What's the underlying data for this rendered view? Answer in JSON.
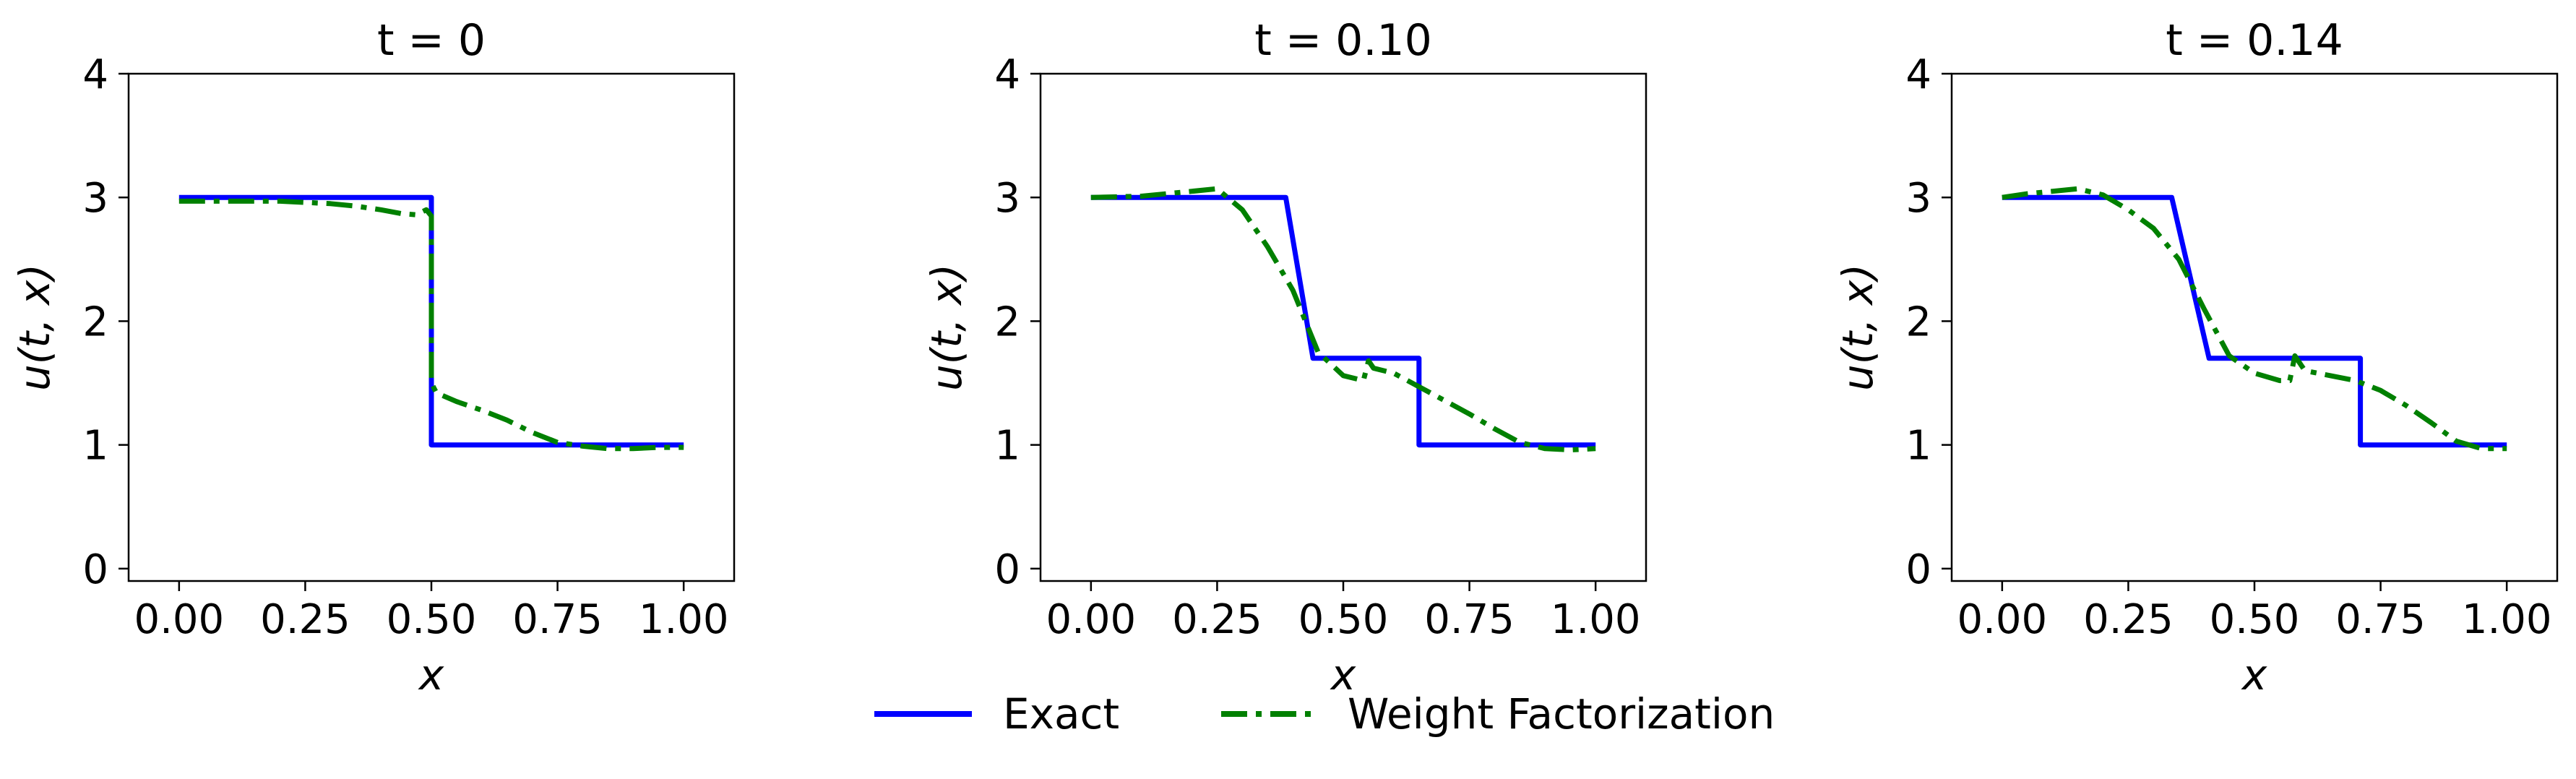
{
  "legend": {
    "items": [
      {
        "label": "Exact",
        "color": "#0000ff",
        "style": "solid"
      },
      {
        "label": "Weight Factorization",
        "color": "#008000",
        "style": "dashdot"
      }
    ]
  },
  "chart_data": [
    {
      "type": "line",
      "title": "t = 0",
      "xlabel": "x",
      "ylabel": "u(t, x)",
      "xlim": [
        -0.1,
        1.1
      ],
      "ylim": [
        -0.1,
        4.0
      ],
      "xticks": [
        "0.00",
        "0.25",
        "0.50",
        "0.75",
        "1.00"
      ],
      "yticks": [
        "0",
        "1",
        "2",
        "3",
        "4"
      ],
      "grid": false,
      "series": [
        {
          "name": "Exact",
          "color": "#0000ff",
          "style": "solid",
          "x": [
            0.0,
            0.5,
            0.5,
            1.0
          ],
          "y": [
            3.0,
            3.0,
            1.0,
            1.0
          ]
        },
        {
          "name": "Weight Factorization",
          "color": "#008000",
          "style": "dashdot",
          "x": [
            0.0,
            0.1,
            0.2,
            0.3,
            0.35,
            0.4,
            0.44,
            0.47,
            0.49,
            0.5,
            0.5,
            0.51,
            0.55,
            0.6,
            0.65,
            0.7,
            0.75,
            0.8,
            0.85,
            0.9,
            0.95,
            1.0
          ],
          "y": [
            2.97,
            2.97,
            2.97,
            2.95,
            2.93,
            2.9,
            2.87,
            2.86,
            2.9,
            2.85,
            1.5,
            1.42,
            1.35,
            1.28,
            1.2,
            1.1,
            1.02,
            0.99,
            0.97,
            0.97,
            0.98,
            0.98
          ]
        }
      ]
    },
    {
      "type": "line",
      "title": "t = 0.10",
      "xlabel": "x",
      "ylabel": "u(t, x)",
      "xlim": [
        -0.1,
        1.1
      ],
      "ylim": [
        -0.1,
        4.0
      ],
      "xticks": [
        "0.00",
        "0.25",
        "0.50",
        "0.75",
        "1.00"
      ],
      "yticks": [
        "0",
        "1",
        "2",
        "3",
        "4"
      ],
      "grid": false,
      "series": [
        {
          "name": "Exact",
          "color": "#0000ff",
          "style": "solid",
          "x": [
            0.0,
            0.386,
            0.44,
            0.65,
            0.65,
            1.0
          ],
          "y": [
            3.0,
            3.0,
            1.7,
            1.7,
            1.0,
            1.0
          ]
        },
        {
          "name": "Weight Factorization",
          "color": "#008000",
          "style": "dashdot",
          "x": [
            0.0,
            0.1,
            0.2,
            0.25,
            0.3,
            0.35,
            0.4,
            0.45,
            0.5,
            0.54,
            0.55,
            0.56,
            0.6,
            0.65,
            0.7,
            0.75,
            0.8,
            0.85,
            0.9,
            0.95,
            1.0
          ],
          "y": [
            3.0,
            3.01,
            3.05,
            3.07,
            2.9,
            2.6,
            2.25,
            1.75,
            1.56,
            1.52,
            1.68,
            1.62,
            1.58,
            1.47,
            1.36,
            1.25,
            1.13,
            1.02,
            0.97,
            0.96,
            0.97
          ]
        }
      ]
    },
    {
      "type": "line",
      "title": "t = 0.14",
      "xlabel": "x",
      "ylabel": "u(t, x)",
      "xlim": [
        -0.1,
        1.1
      ],
      "ylim": [
        -0.1,
        4.0
      ],
      "xticks": [
        "0.00",
        "0.25",
        "0.50",
        "0.75",
        "1.00"
      ],
      "yticks": [
        "0",
        "1",
        "2",
        "3",
        "4"
      ],
      "grid": false,
      "series": [
        {
          "name": "Exact",
          "color": "#0000ff",
          "style": "solid",
          "x": [
            0.0,
            0.336,
            0.41,
            0.71,
            0.71,
            1.0
          ],
          "y": [
            3.0,
            3.0,
            1.7,
            1.7,
            1.0,
            1.0
          ]
        },
        {
          "name": "Weight Factorization",
          "color": "#008000",
          "style": "dashdot",
          "x": [
            0.0,
            0.05,
            0.1,
            0.15,
            0.2,
            0.25,
            0.3,
            0.35,
            0.4,
            0.45,
            0.5,
            0.55,
            0.57,
            0.58,
            0.6,
            0.65,
            0.7,
            0.75,
            0.8,
            0.85,
            0.9,
            0.95,
            1.0
          ],
          "y": [
            3.0,
            3.03,
            3.05,
            3.07,
            3.02,
            2.9,
            2.75,
            2.5,
            2.1,
            1.72,
            1.58,
            1.52,
            1.52,
            1.72,
            1.6,
            1.56,
            1.52,
            1.44,
            1.32,
            1.18,
            1.03,
            0.97,
            0.97
          ]
        }
      ]
    }
  ]
}
